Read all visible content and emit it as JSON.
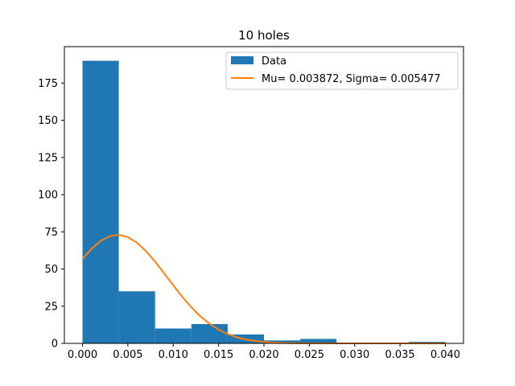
{
  "chart_data": {
    "type": "bar",
    "title": "10 holes",
    "xlabel": "",
    "ylabel": "",
    "xlim": [
      -0.002,
      0.042
    ],
    "ylim": [
      0,
      199.5
    ],
    "xticks": [
      0.0,
      0.005,
      0.01,
      0.015,
      0.02,
      0.025,
      0.03,
      0.035,
      0.04
    ],
    "xtick_labels": [
      "0.000",
      "0.005",
      "0.010",
      "0.015",
      "0.020",
      "0.025",
      "0.030",
      "0.035",
      "0.040"
    ],
    "yticks": [
      0,
      25,
      50,
      75,
      100,
      125,
      150,
      175
    ],
    "ytick_labels": [
      "0",
      "25",
      "50",
      "75",
      "100",
      "125",
      "150",
      "175"
    ],
    "grid": false,
    "legend_position": "upper right",
    "series": [
      {
        "name": "Data",
        "kind": "histogram",
        "color": "#1f77b4",
        "bin_edges": [
          0.0,
          0.004,
          0.008,
          0.012,
          0.016,
          0.02,
          0.024,
          0.028,
          0.032,
          0.036,
          0.04
        ],
        "counts": [
          190,
          35,
          10,
          13,
          6,
          2,
          3,
          0,
          0,
          1
        ]
      },
      {
        "name": "Mu= 0.003872, Sigma= 0.005477",
        "kind": "line",
        "color": "#ff7f0e",
        "mu": 0.003872,
        "sigma": 0.005477,
        "peak": 73
      }
    ]
  }
}
